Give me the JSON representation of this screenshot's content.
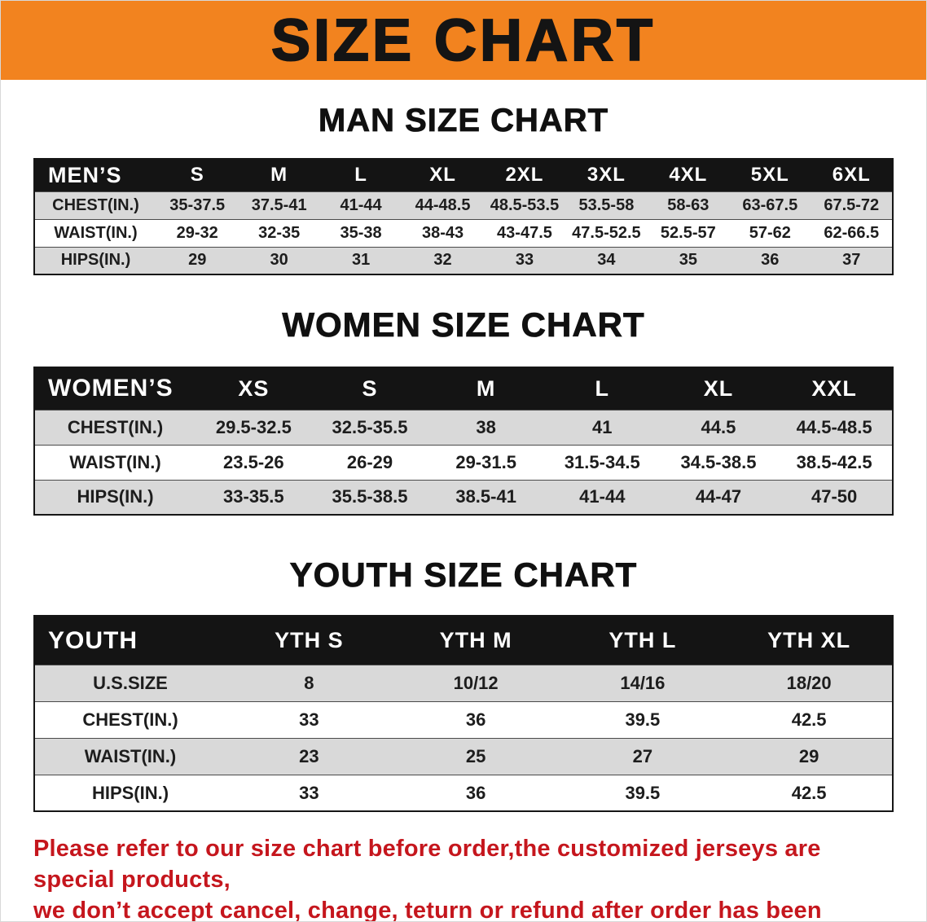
{
  "banner": {
    "title": "SIZE CHART"
  },
  "sections": {
    "men": {
      "heading": "MAN SIZE CHART"
    },
    "women": {
      "heading": "WOMEN SIZE CHART"
    },
    "youth": {
      "heading": "YOUTH SIZE CHART"
    }
  },
  "tables": {
    "men": {
      "header": [
        "MEN’S",
        "S",
        "M",
        "L",
        "XL",
        "2XL",
        "3XL",
        "4XL",
        "5XL",
        "6XL"
      ],
      "rows": [
        [
          "CHEST(IN.)",
          "35-37.5",
          "37.5-41",
          "41-44",
          "44-48.5",
          "48.5-53.5",
          "53.5-58",
          "58-63",
          "63-67.5",
          "67.5-72"
        ],
        [
          "WAIST(IN.)",
          "29-32",
          "32-35",
          "35-38",
          "38-43",
          "43-47.5",
          "47.5-52.5",
          "52.5-57",
          "57-62",
          "62-66.5"
        ],
        [
          "HIPS(IN.)",
          "29",
          "30",
          "31",
          "32",
          "33",
          "34",
          "35",
          "36",
          "37"
        ]
      ]
    },
    "women": {
      "header": [
        "WOMEN’S",
        "XS",
        "S",
        "M",
        "L",
        "XL",
        "XXL"
      ],
      "rows": [
        [
          "CHEST(IN.)",
          "29.5-32.5",
          "32.5-35.5",
          "38",
          "41",
          "44.5",
          "44.5-48.5"
        ],
        [
          "WAIST(IN.)",
          "23.5-26",
          "26-29",
          "29-31.5",
          "31.5-34.5",
          "34.5-38.5",
          "38.5-42.5"
        ],
        [
          "HIPS(IN.)",
          "33-35.5",
          "35.5-38.5",
          "38.5-41",
          "41-44",
          "44-47",
          "47-50"
        ]
      ]
    },
    "youth": {
      "header": [
        "YOUTH",
        "YTH S",
        "YTH M",
        "YTH L",
        "YTH XL"
      ],
      "rows": [
        [
          "U.S.SIZE",
          "8",
          "10/12",
          "14/16",
          "18/20"
        ],
        [
          "CHEST(IN.)",
          "33",
          "36",
          "39.5",
          "42.5"
        ],
        [
          "WAIST(IN.)",
          "23",
          "25",
          "27",
          "29"
        ],
        [
          "HIPS(IN.)",
          "33",
          "36",
          "39.5",
          "42.5"
        ]
      ]
    }
  },
  "disclaimer": {
    "line1": "Please refer to our size chart before order,the customized jerseys are special products,",
    "line2": "we don’t accept cancel, change, teturn or refund after order has been placed!"
  },
  "colors": {
    "banner_orange": "#f2831f",
    "table_header_black": "#141414",
    "row_gray": "#d9d9d9",
    "disclaimer_red": "#c5161d"
  }
}
